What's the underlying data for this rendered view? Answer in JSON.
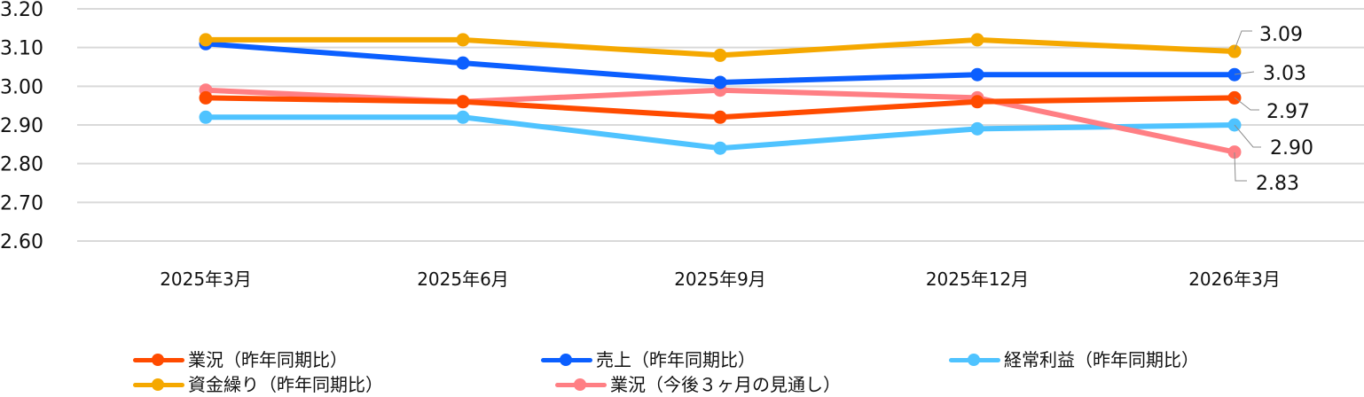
{
  "chart_data": {
    "type": "line",
    "title": "",
    "xlabel": "",
    "ylabel": "",
    "categories": [
      "2025年3月",
      "2025年6月",
      "2025年9月",
      "2025年12月",
      "2026年3月"
    ],
    "ylim": [
      2.6,
      3.2
    ],
    "yticks": [
      "3.20",
      "3.10",
      "3.00",
      "2.90",
      "2.80",
      "2.70",
      "2.60"
    ],
    "grid": true,
    "legend_position": "bottom",
    "series": [
      {
        "name": "業況（昨年同期比）",
        "color": "#FF4B00",
        "values": [
          2.97,
          2.96,
          2.92,
          2.96,
          2.97
        ]
      },
      {
        "name": "売上（昨年同期比）",
        "color": "#0B5FFF",
        "values": [
          3.11,
          3.06,
          3.01,
          3.03,
          3.03
        ]
      },
      {
        "name": "経常利益（昨年同期比）",
        "color": "#4FC3FF",
        "values": [
          2.92,
          2.92,
          2.84,
          2.89,
          2.9
        ]
      },
      {
        "name": "資金繰り（昨年同期比）",
        "color": "#F5A800",
        "values": [
          3.12,
          3.12,
          3.08,
          3.12,
          3.09
        ]
      },
      {
        "name": "業況（今後３ヶ月の見通し）",
        "color": "#FF7F84",
        "values": [
          2.99,
          2.96,
          2.99,
          2.97,
          2.83
        ]
      }
    ],
    "annotations": [
      {
        "series": "資金繰り（昨年同期比）",
        "label": "3.09"
      },
      {
        "series": "売上（昨年同期比）",
        "label": "3.03"
      },
      {
        "series": "業況（昨年同期比）",
        "label": "2.97"
      },
      {
        "series": "経常利益（昨年同期比）",
        "label": "2.90"
      },
      {
        "series": "業況（今後３ヶ月の見通し）",
        "label": "2.83"
      }
    ]
  },
  "legend": {
    "row1": [
      "業況（昨年同期比）",
      "売上（昨年同期比）",
      "経常利益（昨年同期比）"
    ],
    "row2": [
      "資金繰り（昨年同期比）",
      "業況（今後３ヶ月の見通し）"
    ]
  }
}
